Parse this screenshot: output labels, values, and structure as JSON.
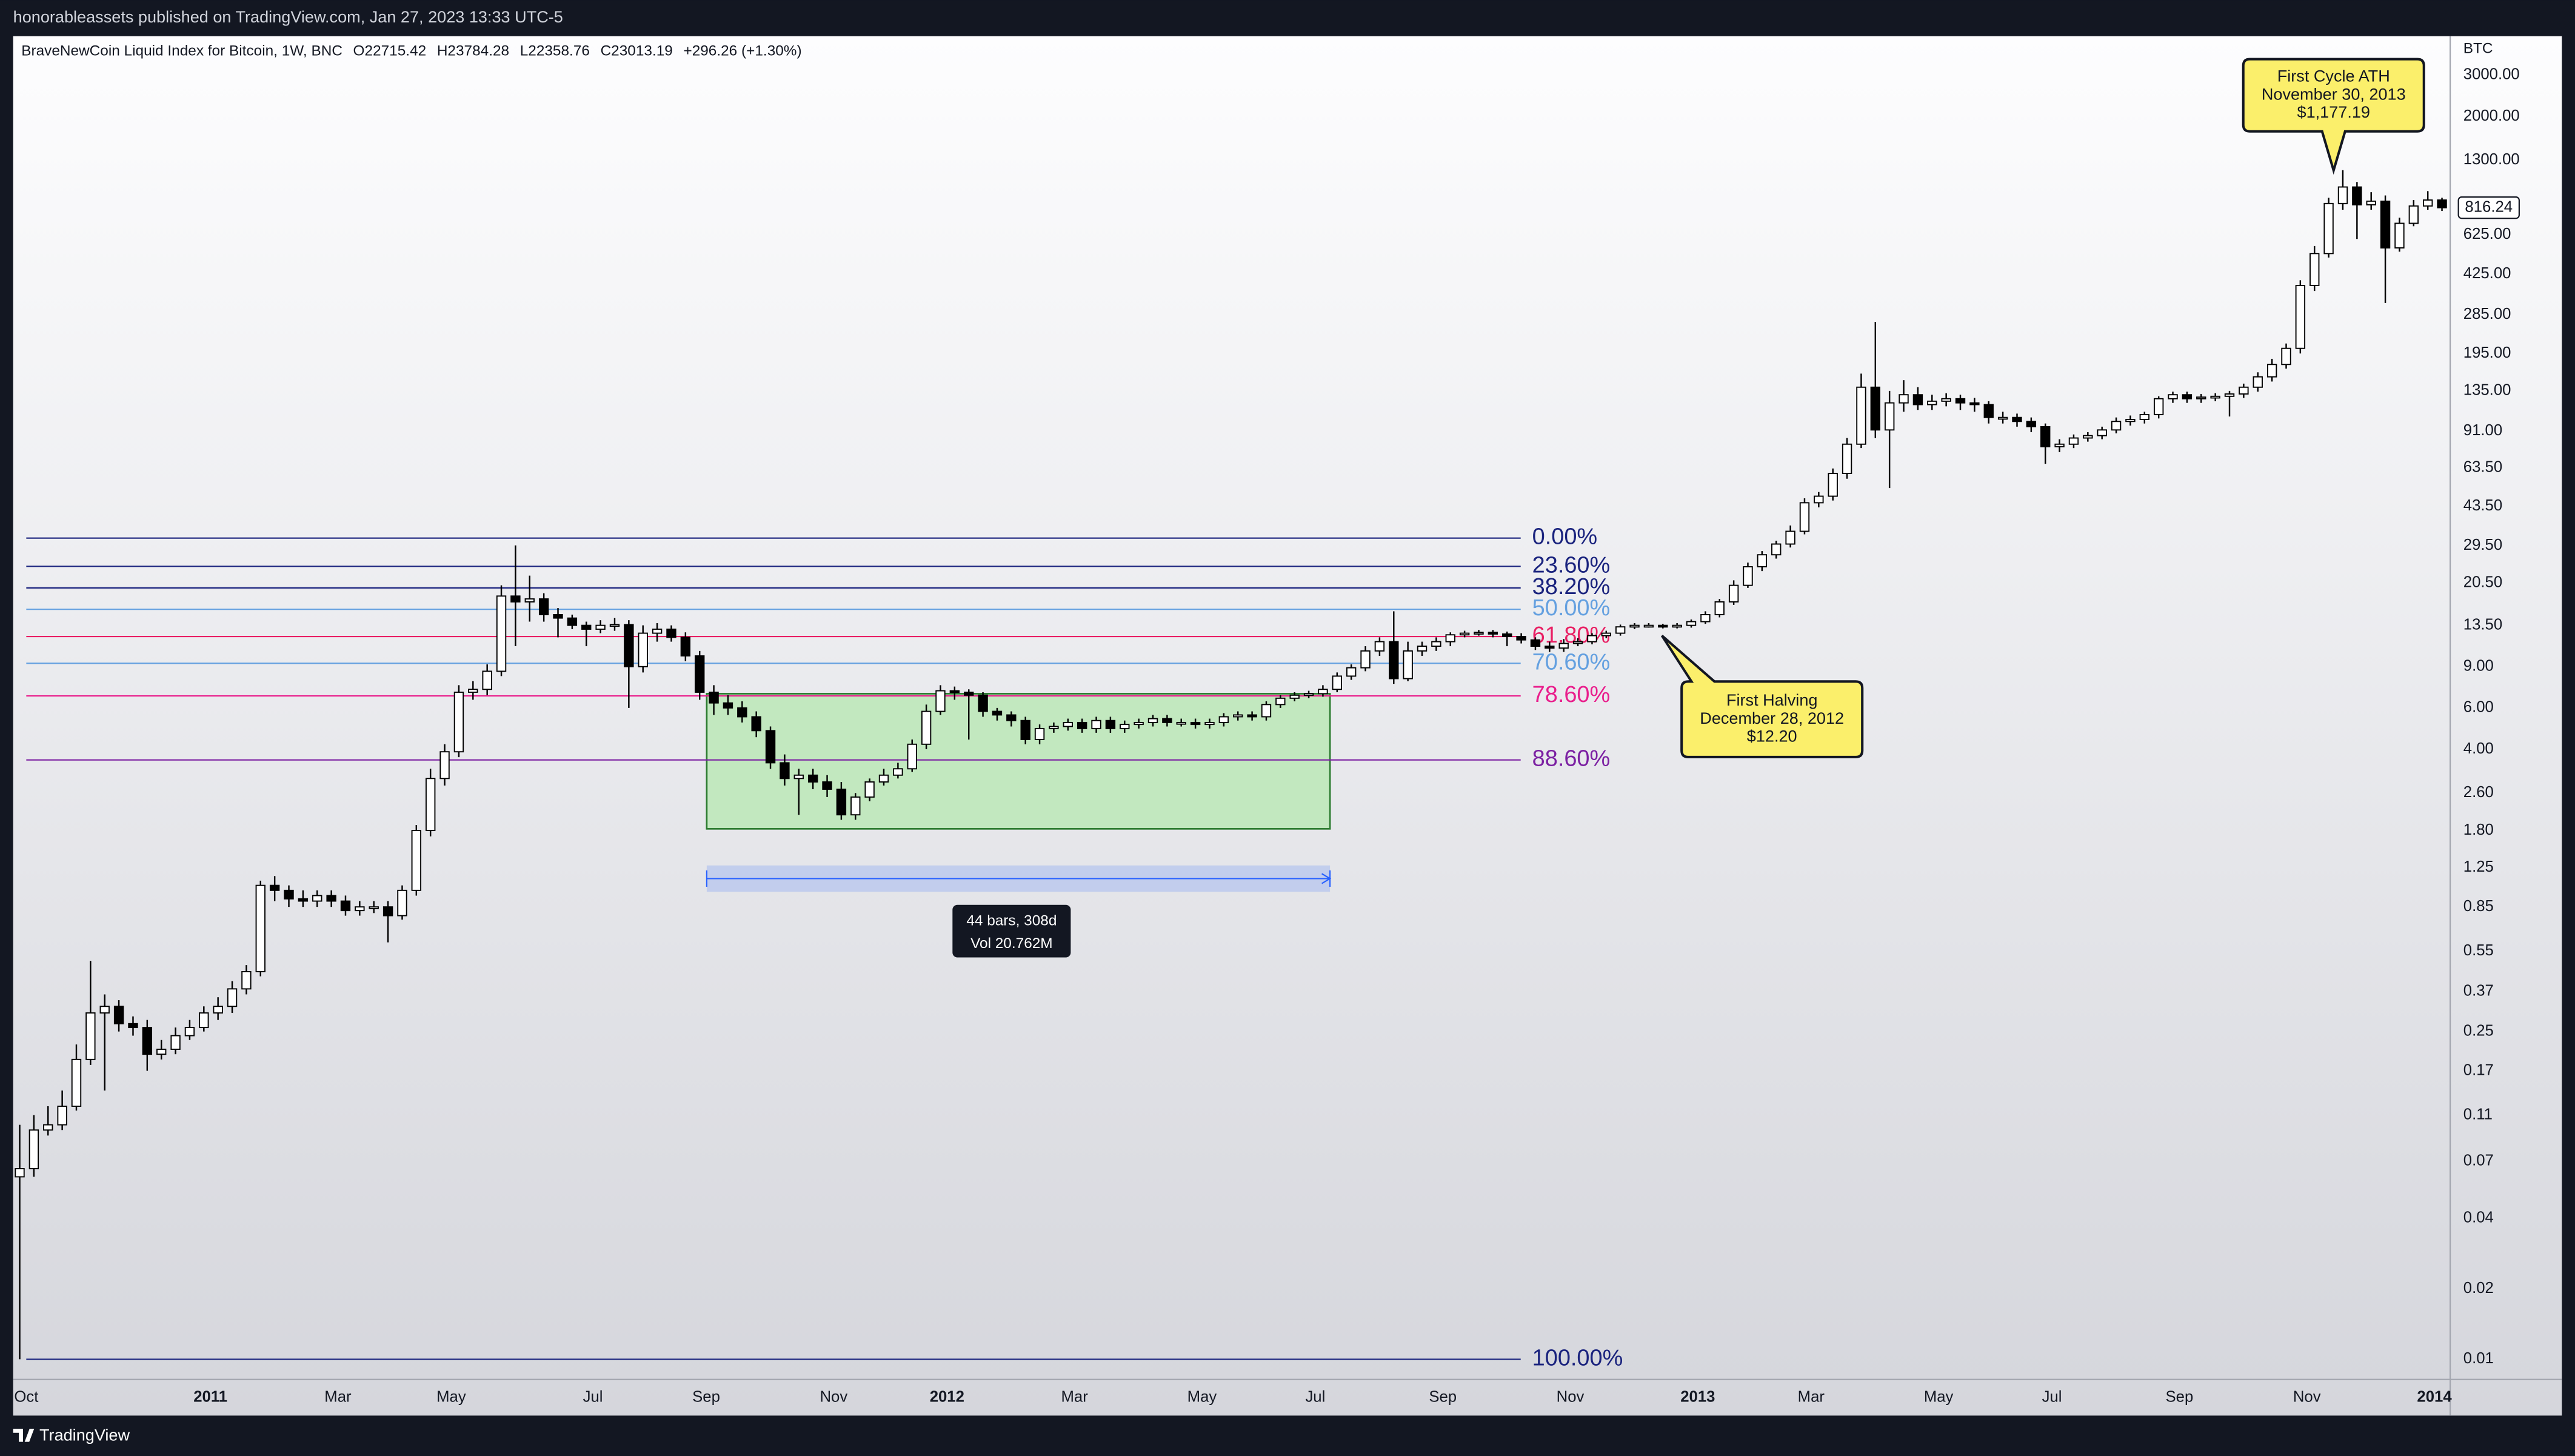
{
  "chart_data": {
    "type": "candlestick",
    "publisher_note": "honorableassets published on TradingView.com, Jan 27, 2023 13:33 UTC-5",
    "title": "BraveNewCoin Liquid Index for Bitcoin, 1W, BNC",
    "ohlc_legend": [
      "O22715.42",
      "H23784.28",
      "L22358.76",
      "C23013.19",
      "+296.26 (+1.30%)"
    ],
    "y_axis_unit": "BTC",
    "brand": "TradingView",
    "log_scale": true,
    "bull_color": "#ffffff",
    "bear_color": "#000000",
    "outline_color": "#000000",
    "categories": [
      "Oct",
      null,
      null,
      null,
      null,
      null,
      null,
      null,
      null,
      null,
      null,
      null,
      null,
      "2011",
      null,
      null,
      null,
      null,
      null,
      null,
      null,
      null,
      "Mar",
      null,
      null,
      null,
      null,
      null,
      null,
      null,
      "May",
      null,
      null,
      null,
      null,
      null,
      null,
      null,
      null,
      null,
      "Jul",
      null,
      null,
      null,
      null,
      null,
      null,
      null,
      "Sep",
      null,
      null,
      null,
      null,
      null,
      null,
      null,
      null,
      "Nov",
      null,
      null,
      null,
      null,
      null,
      null,
      null,
      "2012",
      null,
      null,
      null,
      null,
      null,
      null,
      null,
      null,
      "Mar",
      null,
      null,
      null,
      null,
      null,
      null,
      null,
      null,
      "May",
      null,
      null,
      null,
      null,
      null,
      null,
      null,
      "Jul",
      null,
      null,
      null,
      null,
      null,
      null,
      null,
      null,
      "Sep",
      null,
      null,
      null,
      null,
      null,
      null,
      null,
      null,
      "Nov",
      null,
      null,
      null,
      null,
      null,
      null,
      null,
      null,
      "2013",
      null,
      null,
      null,
      null,
      null,
      null,
      null,
      "Mar",
      null,
      null,
      null,
      null,
      null,
      null,
      null,
      null,
      "May",
      null,
      null,
      null,
      null,
      null,
      null,
      null,
      "Jul",
      null,
      null,
      null,
      null,
      null,
      null,
      null,
      null,
      "Sep",
      null,
      null,
      null,
      null,
      null,
      null,
      null,
      null,
      "Nov",
      null,
      null,
      null,
      null,
      null,
      null,
      null,
      null,
      "2014",
      null
    ],
    "open": [
      0.06,
      0.065,
      0.095,
      0.1,
      0.12,
      0.19,
      0.3,
      0.32,
      0.27,
      0.26,
      0.2,
      0.21,
      0.24,
      0.26,
      0.3,
      0.32,
      0.38,
      0.45,
      1.05,
      1.0,
      0.92,
      0.9,
      0.95,
      0.9,
      0.82,
      0.85,
      0.85,
      0.78,
      1.0,
      1.8,
      3.0,
      3.9,
      7,
      7.2,
      8.6,
      18,
      17,
      17.5,
      15,
      14.5,
      13.5,
      13,
      13.5,
      13.6,
      9,
      12.5,
      13,
      12,
      10,
      7,
      6.3,
      6,
      5.5,
      4.8,
      3.5,
      3.0,
      3.1,
      2.9,
      2.7,
      2.1,
      2.5,
      2.9,
      3.1,
      3.3,
      4.2,
      5.8,
      7.1,
      7.0,
      6.8,
      5.8,
      5.6,
      5.3,
      4.4,
      4.9,
      5.0,
      5.2,
      4.9,
      5.3,
      4.9,
      5.1,
      5.2,
      5.4,
      5.2,
      5.2,
      5.1,
      5.2,
      5.5,
      5.6,
      5.5,
      6.2,
      6.6,
      6.8,
      6.9,
      7.2,
      8.2,
      8.9,
      10.5,
      11.5,
      8,
      10.5,
      11,
      11.5,
      12.3,
      12.5,
      12.6,
      12.4,
      12.1,
      11.7,
      11,
      10.8,
      11.3,
      11.5,
      12.2,
      12.5,
      13.3,
      13.5,
      13.5,
      13.4,
      13.5,
      14,
      15,
      17,
      20,
      24,
      27,
      30,
      34,
      45,
      48,
      60,
      80,
      140,
      92,
      120,
      130,
      118,
      122,
      125,
      120,
      118,
      104,
      104,
      100,
      95,
      78,
      80,
      85,
      87,
      92,
      100,
      102,
      107,
      125,
      130,
      125,
      127,
      128,
      131,
      140,
      155,
      175,
      205,
      380,
      520,
      850,
      1000,
      840,
      870,
      550,
      700,
      830,
      880
    ],
    "high": [
      0.1,
      0.11,
      0.12,
      0.14,
      0.22,
      0.5,
      0.36,
      0.34,
      0.29,
      0.28,
      0.23,
      0.26,
      0.28,
      0.32,
      0.35,
      0.41,
      0.48,
      1.1,
      1.15,
      1.05,
      1.0,
      1.0,
      1.0,
      0.95,
      0.9,
      0.9,
      0.9,
      1.05,
      1.9,
      3.3,
      4.2,
      7.5,
      7.8,
      9.2,
      20,
      29.6,
      22,
      18.5,
      16,
      15,
      14,
      14.2,
      14.5,
      14.2,
      13.5,
      13.8,
      13.5,
      12.6,
      10.5,
      7.5,
      6.8,
      6.4,
      5.8,
      5.0,
      3.8,
      3.3,
      3.3,
      3.1,
      2.9,
      2.6,
      3.0,
      3.3,
      3.5,
      4.4,
      6.2,
      7.5,
      7.4,
      7.2,
      7.0,
      6.0,
      5.8,
      5.5,
      5.1,
      5.2,
      5.4,
      5.4,
      5.5,
      5.5,
      5.3,
      5.4,
      5.6,
      5.6,
      5.4,
      5.4,
      5.4,
      5.7,
      5.8,
      5.8,
      6.4,
      6.8,
      7.0,
      7.1,
      7.5,
      8.5,
      9.2,
      11,
      12,
      15.5,
      11.5,
      11.5,
      12,
      12.6,
      12.8,
      12.9,
      12.9,
      12.7,
      12.5,
      12,
      11.5,
      11.8,
      11.9,
      12.5,
      12.8,
      13.6,
      13.8,
      13.8,
      13.7,
      13.8,
      14.3,
      15.5,
      17.5,
      21,
      25,
      28,
      31,
      36,
      47,
      50,
      63,
      85,
      160,
      266,
      135,
      150,
      140,
      130,
      132,
      130,
      126,
      122,
      110,
      108,
      104,
      98,
      84,
      88,
      90,
      95,
      104,
      106,
      110,
      128,
      134,
      134,
      131,
      132,
      135,
      145,
      162,
      185,
      215,
      400,
      560,
      900,
      1180,
      1050,
      950,
      920,
      740,
      880,
      960,
      900
    ],
    "low": [
      0.01,
      0.06,
      0.09,
      0.095,
      0.115,
      0.18,
      0.14,
      0.25,
      0.24,
      0.17,
      0.19,
      0.2,
      0.23,
      0.25,
      0.28,
      0.3,
      0.36,
      0.43,
      0.9,
      0.85,
      0.85,
      0.85,
      0.85,
      0.78,
      0.78,
      0.8,
      0.6,
      0.75,
      0.95,
      1.7,
      2.8,
      3.7,
      6.5,
      6.8,
      8.2,
      11,
      14,
      14,
      12,
      13,
      11,
      12.5,
      12.8,
      6,
      8.5,
      11.5,
      11.5,
      9.5,
      6.5,
      5.6,
      5.6,
      5.2,
      4.5,
      3.3,
      2.8,
      2.1,
      2.7,
      2.5,
      2.0,
      2.0,
      2.4,
      2.8,
      3.0,
      3.2,
      4.0,
      5.6,
      6.5,
      4.4,
      5.5,
      5.3,
      5.0,
      4.2,
      4.2,
      4.7,
      4.8,
      4.7,
      4.7,
      4.7,
      4.7,
      4.9,
      5.0,
      5.0,
      5.0,
      4.9,
      4.9,
      5.0,
      5.3,
      5.3,
      5.3,
      6.0,
      6.4,
      6.6,
      6.7,
      7.0,
      7.9,
      8.6,
      10,
      7.6,
      7.8,
      10,
      10.5,
      11,
      12,
      12.2,
      12,
      11,
      11.3,
      10.6,
      10.4,
      10.4,
      11,
      11.2,
      11.9,
      12.2,
      13,
      13.2,
      13.1,
      13.1,
      13.2,
      13.7,
      14.6,
      16.5,
      19.5,
      23,
      26,
      29,
      33,
      43,
      46,
      57,
      77,
      85,
      52,
      110,
      112,
      112,
      116,
      112,
      110,
      98,
      98,
      95,
      90,
      66,
      74,
      77,
      82,
      84,
      89,
      96,
      98,
      103,
      120,
      120,
      120,
      122,
      105,
      126,
      134,
      148,
      168,
      195,
      360,
      500,
      800,
      600,
      800,
      320,
      530,
      680,
      800,
      790
    ],
    "close": [
      0.065,
      0.095,
      0.1,
      0.12,
      0.19,
      0.3,
      0.32,
      0.27,
      0.26,
      0.2,
      0.21,
      0.24,
      0.26,
      0.3,
      0.32,
      0.38,
      0.45,
      1.05,
      1.0,
      0.92,
      0.9,
      0.95,
      0.9,
      0.82,
      0.85,
      0.85,
      0.78,
      1.0,
      1.8,
      3.0,
      3.9,
      7,
      7.2,
      8.6,
      18,
      17,
      17.5,
      15,
      14.5,
      13.5,
      13,
      13.5,
      13.6,
      9,
      12.5,
      13,
      12,
      10,
      7,
      6.3,
      6,
      5.5,
      4.8,
      3.5,
      3.0,
      3.1,
      2.9,
      2.7,
      2.1,
      2.5,
      2.9,
      3.1,
      3.3,
      4.2,
      5.8,
      7.1,
      7.0,
      6.8,
      5.8,
      5.6,
      5.3,
      4.4,
      4.9,
      5.0,
      5.2,
      4.9,
      5.3,
      4.9,
      5.1,
      5.2,
      5.4,
      5.2,
      5.2,
      5.1,
      5.2,
      5.5,
      5.6,
      5.5,
      6.2,
      6.6,
      6.8,
      6.9,
      7.2,
      8.2,
      8.9,
      10.5,
      11.5,
      8,
      10.5,
      11,
      11.5,
      12.3,
      12.5,
      12.6,
      12.4,
      12.1,
      11.7,
      11,
      10.8,
      11.3,
      11.5,
      12.2,
      12.5,
      13.3,
      13.5,
      13.5,
      13.4,
      13.5,
      14,
      15,
      17,
      20,
      24,
      27,
      30,
      34,
      45,
      48,
      60,
      80,
      140,
      92,
      120,
      130,
      118,
      122,
      125,
      120,
      118,
      104,
      104,
      100,
      95,
      78,
      80,
      85,
      87,
      92,
      100,
      102,
      107,
      125,
      130,
      125,
      127,
      128,
      131,
      140,
      155,
      175,
      205,
      380,
      520,
      850,
      1000,
      840,
      870,
      550,
      700,
      830,
      880,
      816.24
    ],
    "ylim": [
      0.0082,
      4400
    ],
    "yticks": [
      {
        "value": 3000,
        "label": "3000.00"
      },
      {
        "value": 2000,
        "label": "2000.00"
      },
      {
        "value": 1300,
        "label": "1300.00"
      },
      {
        "value": 625,
        "label": "625.00"
      },
      {
        "value": 425,
        "label": "425.00"
      },
      {
        "value": 285,
        "label": "285.00"
      },
      {
        "value": 195,
        "label": "195.00"
      },
      {
        "value": 135,
        "label": "135.00"
      },
      {
        "value": 91,
        "label": "91.00"
      },
      {
        "value": 63.5,
        "label": "63.50"
      },
      {
        "value": 43.5,
        "label": "43.50"
      },
      {
        "value": 29.5,
        "label": "29.50"
      },
      {
        "value": 20.5,
        "label": "20.50"
      },
      {
        "value": 13.5,
        "label": "13.50"
      },
      {
        "value": 9,
        "label": "9.00"
      },
      {
        "value": 6,
        "label": "6.00"
      },
      {
        "value": 4,
        "label": "4.00"
      },
      {
        "value": 2.6,
        "label": "2.60"
      },
      {
        "value": 1.8,
        "label": "1.80"
      },
      1.25,
      0.85,
      0.55,
      0.37,
      0.25,
      0.17,
      0.11,
      0.07,
      0.04,
      0.02,
      0.01
    ],
    "last_price": 816.24,
    "fib_levels": [
      {
        "label": "0.00%",
        "value": 31.8,
        "color": "#1a237e"
      },
      {
        "label": "23.60%",
        "value": 24.1,
        "color": "#1a237e"
      },
      {
        "label": "38.20%",
        "value": 19.5,
        "color": "#1a237e"
      },
      {
        "label": "50.00%",
        "value": 15.8,
        "color": "#64a0e0"
      },
      {
        "label": "61.80%",
        "value": 12.1,
        "color": "#e91e63"
      },
      {
        "label": "70.60%",
        "value": 9.3,
        "color": "#64a0e0"
      },
      {
        "label": "78.60%",
        "value": 6.75,
        "color": "#e91e8c"
      },
      {
        "label": "88.60%",
        "value": 3.6,
        "color": "#7b1fa2"
      },
      {
        "label": "100.00%",
        "value": 0.01,
        "color": "#1a237e"
      }
    ],
    "range_box": {
      "top": 6.9,
      "bottom": 1.83,
      "color": "#c2e8bf",
      "border": "#2e7d32"
    },
    "measure": {
      "lines": [
        "44 bars, 308d",
        "Vol 20.762M"
      ]
    },
    "annotations": [
      {
        "title": "First Cycle ATH",
        "date": "November 30, 2013",
        "price": {
          "value": 1177.19,
          "label": "$1,177.19"
        }
      },
      {
        "title": "First Halving",
        "date": "December 28, 2012",
        "price": {
          "value": 12.2,
          "label": "$12.20"
        }
      }
    ]
  }
}
